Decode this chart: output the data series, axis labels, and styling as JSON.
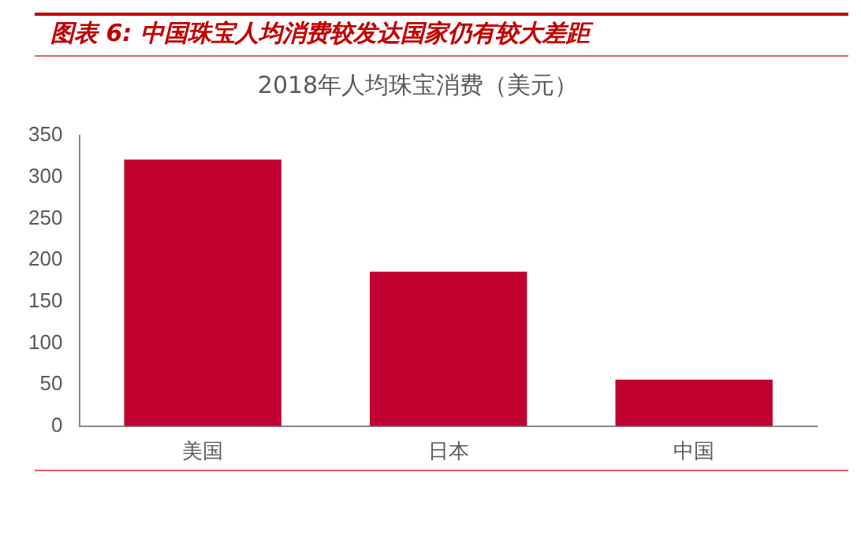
{
  "chart_data": {
    "type": "bar",
    "title": "图表 6:  中国珠宝人均消费较发达国家仍有较大差距",
    "subtitle": "2018年人均珠宝消费（美元）",
    "categories": [
      "美国",
      "日本",
      "中国"
    ],
    "values": [
      321,
      186,
      56
    ],
    "color": "#c0002f",
    "ylim": [
      0,
      350
    ],
    "yticks": [
      0,
      50,
      100,
      150,
      200,
      250,
      300,
      350
    ],
    "grid": false,
    "legend": false
  }
}
